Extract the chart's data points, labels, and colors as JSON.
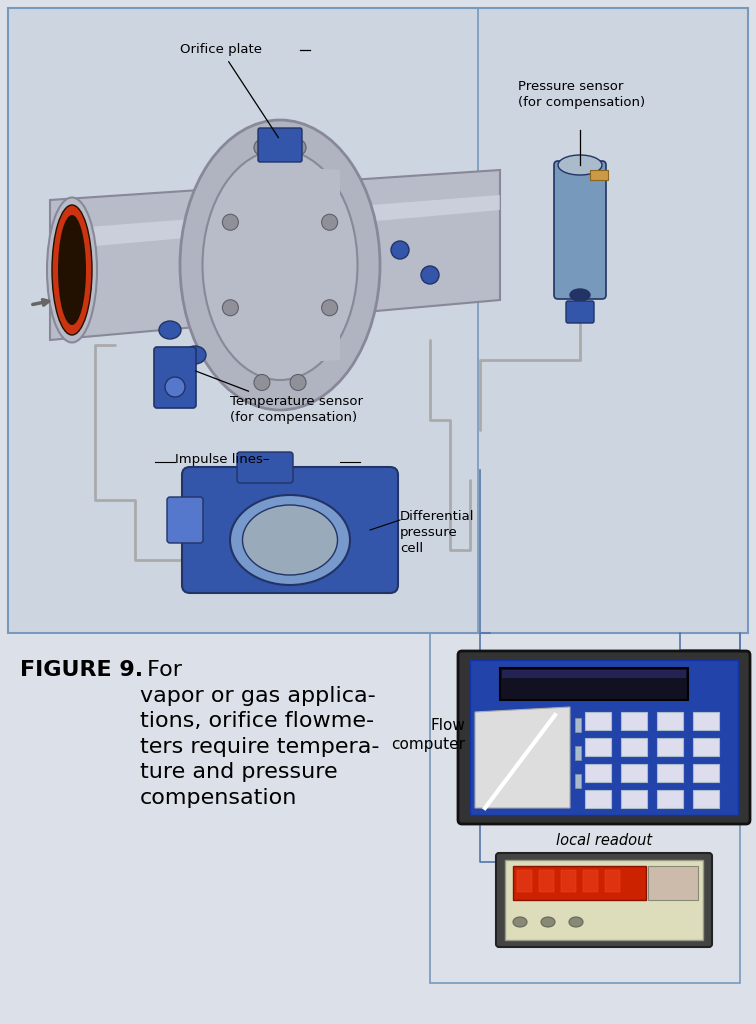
{
  "bg_color": "#dce0e8",
  "diagram_bg": "#cdd5e0",
  "border_color": "#7799bb",
  "caption_bold": "FIGURE 9.",
  "caption_normal": " For\nvapor or gas applica-\ntions, orifice flowme-\nters require tempera-\nture and pressure\ncompensation",
  "label_orifice": "Orifice plate",
  "label_pressure": "Pressure sensor\n(for compensation)",
  "label_temp": "Temperature sensor\n(for compensation)",
  "label_impulse": "Impulse lines",
  "label_dp": "Differential\npressure\ncell",
  "label_flow": "Flow\ncomputer",
  "label_readout": "local readout",
  "pipe_color": "#b8bcc8",
  "pipe_highlight": "#d8dce8",
  "pipe_dark": "#888898",
  "pipe_red_end": "#cc3311",
  "pipe_red_inner": "#221100",
  "flange_color": "#b0b4c0",
  "blue_device": "#3355aa",
  "blue_light": "#5577cc",
  "blue_dark": "#223366",
  "sensor_color": "#7799bb",
  "line_color": "#aaaaaa",
  "fc_bg": "#2244aa",
  "fc_border": "#222222",
  "fc_screen": "#111122",
  "lr_bg": "#ddddbb",
  "lr_screen": "#cc2200",
  "lr_border": "#444444",
  "connection_color": "#5577aa"
}
